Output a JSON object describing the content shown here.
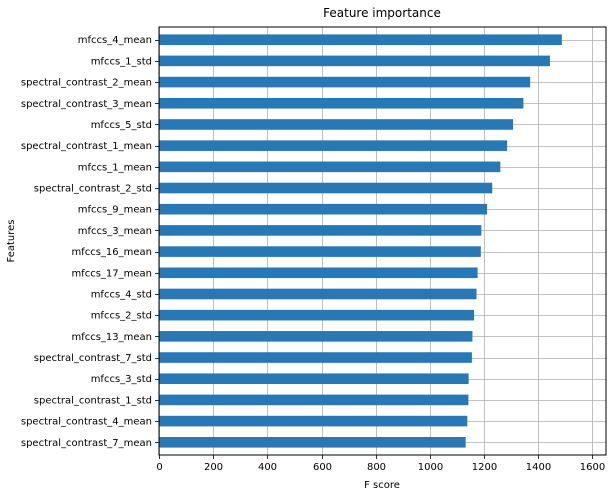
{
  "chart_data": {
    "type": "bar",
    "orientation": "horizontal",
    "title": "Feature importance",
    "xlabel": "F score",
    "ylabel": "Features",
    "xlim": [
      0,
      1650
    ],
    "xticks": [
      0,
      200,
      400,
      600,
      800,
      1000,
      1200,
      1400,
      1600
    ],
    "grid": true,
    "bar_color": "#2878b5",
    "categories": [
      "mfccs_4_mean",
      "mfccs_1_std",
      "spectral_contrast_2_mean",
      "spectral_contrast_3_mean",
      "mfccs_5_std",
      "spectral_contrast_1_mean",
      "mfccs_1_mean",
      "spectral_contrast_2_std",
      "mfccs_9_mean",
      "mfccs_3_mean",
      "mfccs_16_mean",
      "mfccs_17_mean",
      "mfccs_4_std",
      "mfccs_2_std",
      "mfccs_13_mean",
      "spectral_contrast_7_std",
      "mfccs_3_std",
      "spectral_contrast_1_std",
      "spectral_contrast_4_mean",
      "spectral_contrast_7_mean"
    ],
    "values": [
      1487,
      1443,
      1370,
      1345,
      1307,
      1285,
      1260,
      1230,
      1211,
      1190,
      1188,
      1176,
      1172,
      1163,
      1157,
      1155,
      1143,
      1142,
      1138,
      1132
    ]
  }
}
